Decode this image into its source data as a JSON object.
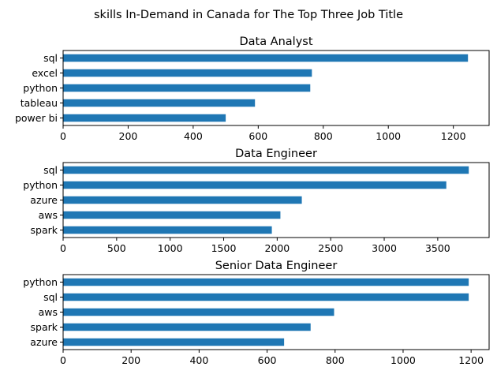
{
  "figure": {
    "suptitle": "skills In-Demand in Canada for The Top Three Job Title"
  },
  "colors": {
    "bar": "#1f77b4",
    "axis": "#000000",
    "background": "#ffffff"
  },
  "chart_data": [
    {
      "type": "bar",
      "orientation": "horizontal",
      "title": "Data Analyst",
      "xlabel": "",
      "ylabel": "",
      "categories": [
        "sql",
        "excel",
        "python",
        "tableau",
        "power bi"
      ],
      "values": [
        1245,
        765,
        760,
        590,
        500
      ],
      "xlim": [
        0,
        1310
      ],
      "xticks": [
        0,
        200,
        400,
        600,
        800,
        1000,
        1200
      ],
      "grid": false,
      "legend": "none"
    },
    {
      "type": "bar",
      "orientation": "horizontal",
      "title": "Data Engineer",
      "xlabel": "",
      "ylabel": "",
      "categories": [
        "sql",
        "python",
        "azure",
        "aws",
        "spark"
      ],
      "values": [
        3790,
        3580,
        2230,
        2030,
        1950
      ],
      "xlim": [
        0,
        3980
      ],
      "xticks": [
        0,
        500,
        1000,
        1500,
        2000,
        2500,
        3000,
        3500
      ],
      "grid": false,
      "legend": "none"
    },
    {
      "type": "bar",
      "orientation": "horizontal",
      "title": "Senior Data Engineer",
      "xlabel": "",
      "ylabel": "",
      "categories": [
        "python",
        "sql",
        "aws",
        "spark",
        "azure"
      ],
      "values": [
        1193,
        1193,
        797,
        728,
        650
      ],
      "xlim": [
        0,
        1253
      ],
      "xticks": [
        0,
        200,
        400,
        600,
        800,
        1000,
        1200
      ],
      "grid": false,
      "legend": "none"
    }
  ]
}
